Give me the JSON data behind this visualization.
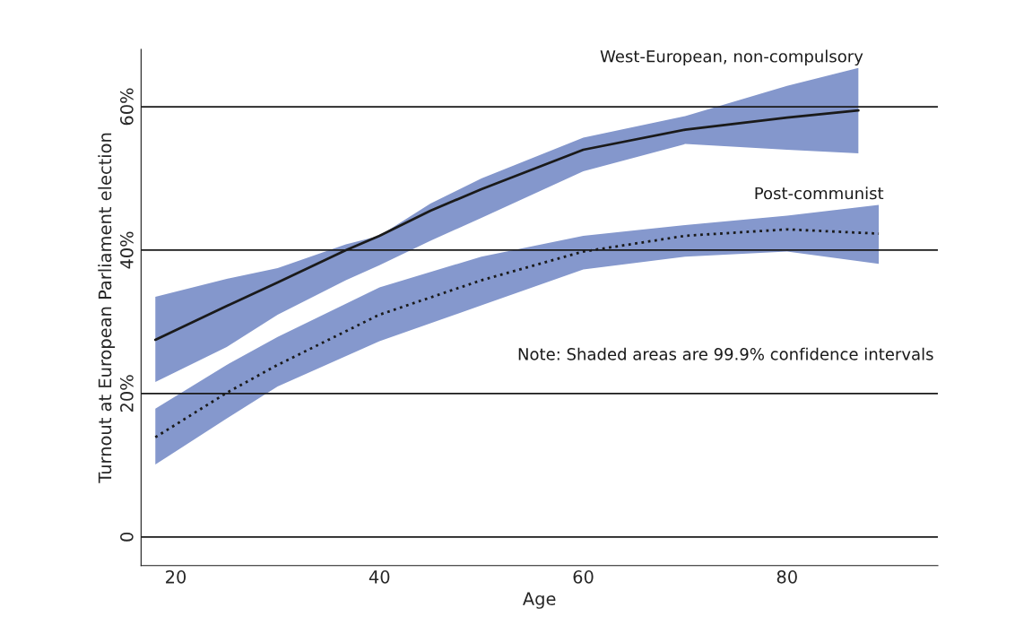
{
  "chart_data": {
    "type": "line",
    "xlabel": "Age",
    "ylabel": "Turnout at European Parliament election",
    "xlim": [
      16.6,
      94.8
    ],
    "xticks": [
      20,
      40,
      60,
      80
    ],
    "ylim": [
      -4,
      68
    ],
    "yticks": [
      0,
      {
        "value": 20,
        "label": "20%"
      },
      {
        "value": 40,
        "label": "40%"
      },
      {
        "value": 60,
        "label": "60%"
      }
    ],
    "grid": "y",
    "legend": false,
    "annotations": [
      "Note: Shaded areas are 99.9% confidence intervals"
    ],
    "series": [
      {
        "name": "West-European, non-compulsory",
        "color": "#1a1a1a",
        "line_style": "solid",
        "x": [
          18,
          25,
          30,
          36.7,
          40,
          45,
          50,
          60,
          70,
          80,
          87
        ],
        "values": [
          27.5,
          32.2,
          35.5,
          40,
          42,
          45.5,
          48.5,
          54,
          56.8,
          58.5,
          59.5
        ],
        "lower": [
          21.6,
          26.5,
          31,
          35.8,
          37.9,
          41.3,
          44.5,
          51,
          54.8,
          54,
          53.5
        ],
        "upper": [
          33.5,
          36,
          37.5,
          40.8,
          42,
          46.5,
          50,
          55.7,
          58.7,
          62.9,
          65.4
        ]
      },
      {
        "name": "Post-communist",
        "color": "#1a1a1a",
        "line_style": "dotted",
        "x": [
          18,
          25,
          30,
          40,
          50,
          60,
          70,
          80,
          89
        ],
        "values": [
          13.9,
          20.1,
          24,
          31,
          35.8,
          39.8,
          42,
          42.9,
          42.3
        ],
        "lower": [
          10.1,
          16.5,
          21,
          27.3,
          32.3,
          37.3,
          39.1,
          39.8,
          38.1
        ],
        "upper": [
          17.9,
          24,
          27.9,
          34.8,
          39.1,
          42,
          43.5,
          44.8,
          46.3
        ]
      }
    ]
  }
}
